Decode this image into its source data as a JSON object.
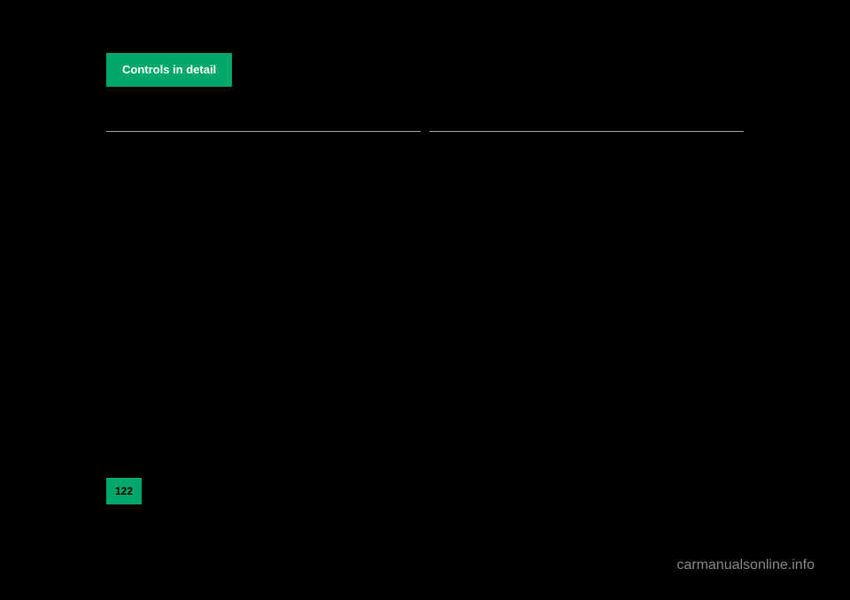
{
  "header": {
    "tab_label": "Controls in detail"
  },
  "page_number": "122",
  "watermark": "carmanualsonline.info",
  "layout": {
    "background_color": "#000000",
    "accent_color": "#00a86b",
    "divider_color": "#a0a0a0",
    "text_color": "#ffffff",
    "page_number_text_color": "#000000",
    "watermark_color": "#888888"
  }
}
